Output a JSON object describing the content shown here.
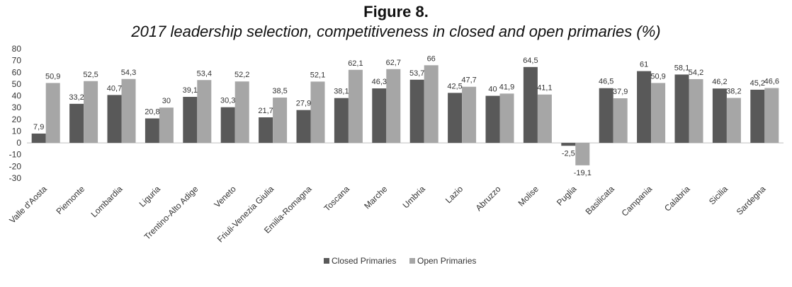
{
  "figure_label": "Figure 8.",
  "chart_data": {
    "type": "bar",
    "title": "2017 leadership selection, competitiveness in closed and open primaries (%)",
    "xlabel": "",
    "ylabel": "",
    "ylim": [
      -30,
      80
    ],
    "yticks": [
      "80",
      "70",
      "60",
      "50",
      "40",
      "30",
      "20",
      "10",
      "0",
      "-10",
      "-20",
      "-30"
    ],
    "categories": [
      "Valle d'Aosta",
      "Piemonte",
      "Lombardia",
      "Liguria",
      "Trentino-Alto Adige",
      "Veneto",
      "Friuli-Venezia Giulia",
      "Emilia-Romagna",
      "Toscana",
      "Marche",
      "Umbria",
      "Lazio",
      "Abruzzo",
      "Molise",
      "Puglia",
      "Basilicata",
      "Campania",
      "Calabria",
      "Sicilia",
      "Sardegna"
    ],
    "series": [
      {
        "name": "Closed Primaries",
        "color": "#595959",
        "values": [
          7.9,
          33.2,
          40.7,
          20.8,
          39.1,
          30.3,
          21.7,
          27.9,
          38.1,
          46.3,
          53.7,
          42.5,
          40,
          64.5,
          -2.5,
          46.5,
          61,
          58.1,
          46.2,
          45.2
        ],
        "labels": [
          "7,9",
          "33,2",
          "40,7",
          "20,8",
          "39,1",
          "30,3",
          "21,7",
          "27,9",
          "38,1",
          "46,3",
          "53,7",
          "42,5",
          "40",
          "64,5",
          "-2,5",
          "46,5",
          "61",
          "58,1",
          "46,2",
          "45,2"
        ]
      },
      {
        "name": "Open Primaries",
        "color": "#a6a6a6",
        "values": [
          50.9,
          52.5,
          54.3,
          30,
          53.4,
          52.2,
          38.5,
          52.1,
          62.1,
          62.7,
          66,
          47.7,
          41.9,
          41.1,
          -19.1,
          37.9,
          50.9,
          54.2,
          38.2,
          46.6
        ],
        "labels": [
          "50,9",
          "52,5",
          "54,3",
          "30",
          "53,4",
          "52,2",
          "38,5",
          "52,1",
          "62,1",
          "62,7",
          "66",
          "47,7",
          "41,9",
          "41,1",
          "-19,1",
          "37,9",
          "50,9",
          "54,2",
          "38,2",
          "46,6"
        ]
      }
    ],
    "legend_position": "bottom-center",
    "grid": false
  }
}
